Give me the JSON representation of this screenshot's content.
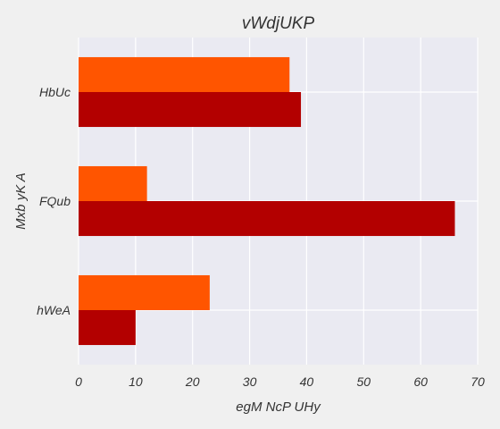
{
  "chart_data": {
    "type": "bar",
    "orientation": "horizontal",
    "title": "vWdjUKP",
    "xlabel": "egM NcP UHy",
    "ylabel": "Mxb yK A",
    "categories": [
      "hWeA",
      "FQub",
      "HbUc"
    ],
    "series": [
      {
        "values": [
          10,
          66,
          39
        ],
        "color": "#b30000"
      },
      {
        "values": [
          23,
          12,
          37
        ],
        "color": "#ff5500"
      }
    ],
    "xlim": [
      0,
      70
    ],
    "xticks": [
      0,
      10,
      20,
      30,
      40,
      50,
      60,
      70
    ],
    "grid": true,
    "legend": "none"
  },
  "colors": {
    "background": "#f0f0f0",
    "plot_background": "#eaeaf2",
    "grid": "#ffffff",
    "text": "#333333"
  }
}
